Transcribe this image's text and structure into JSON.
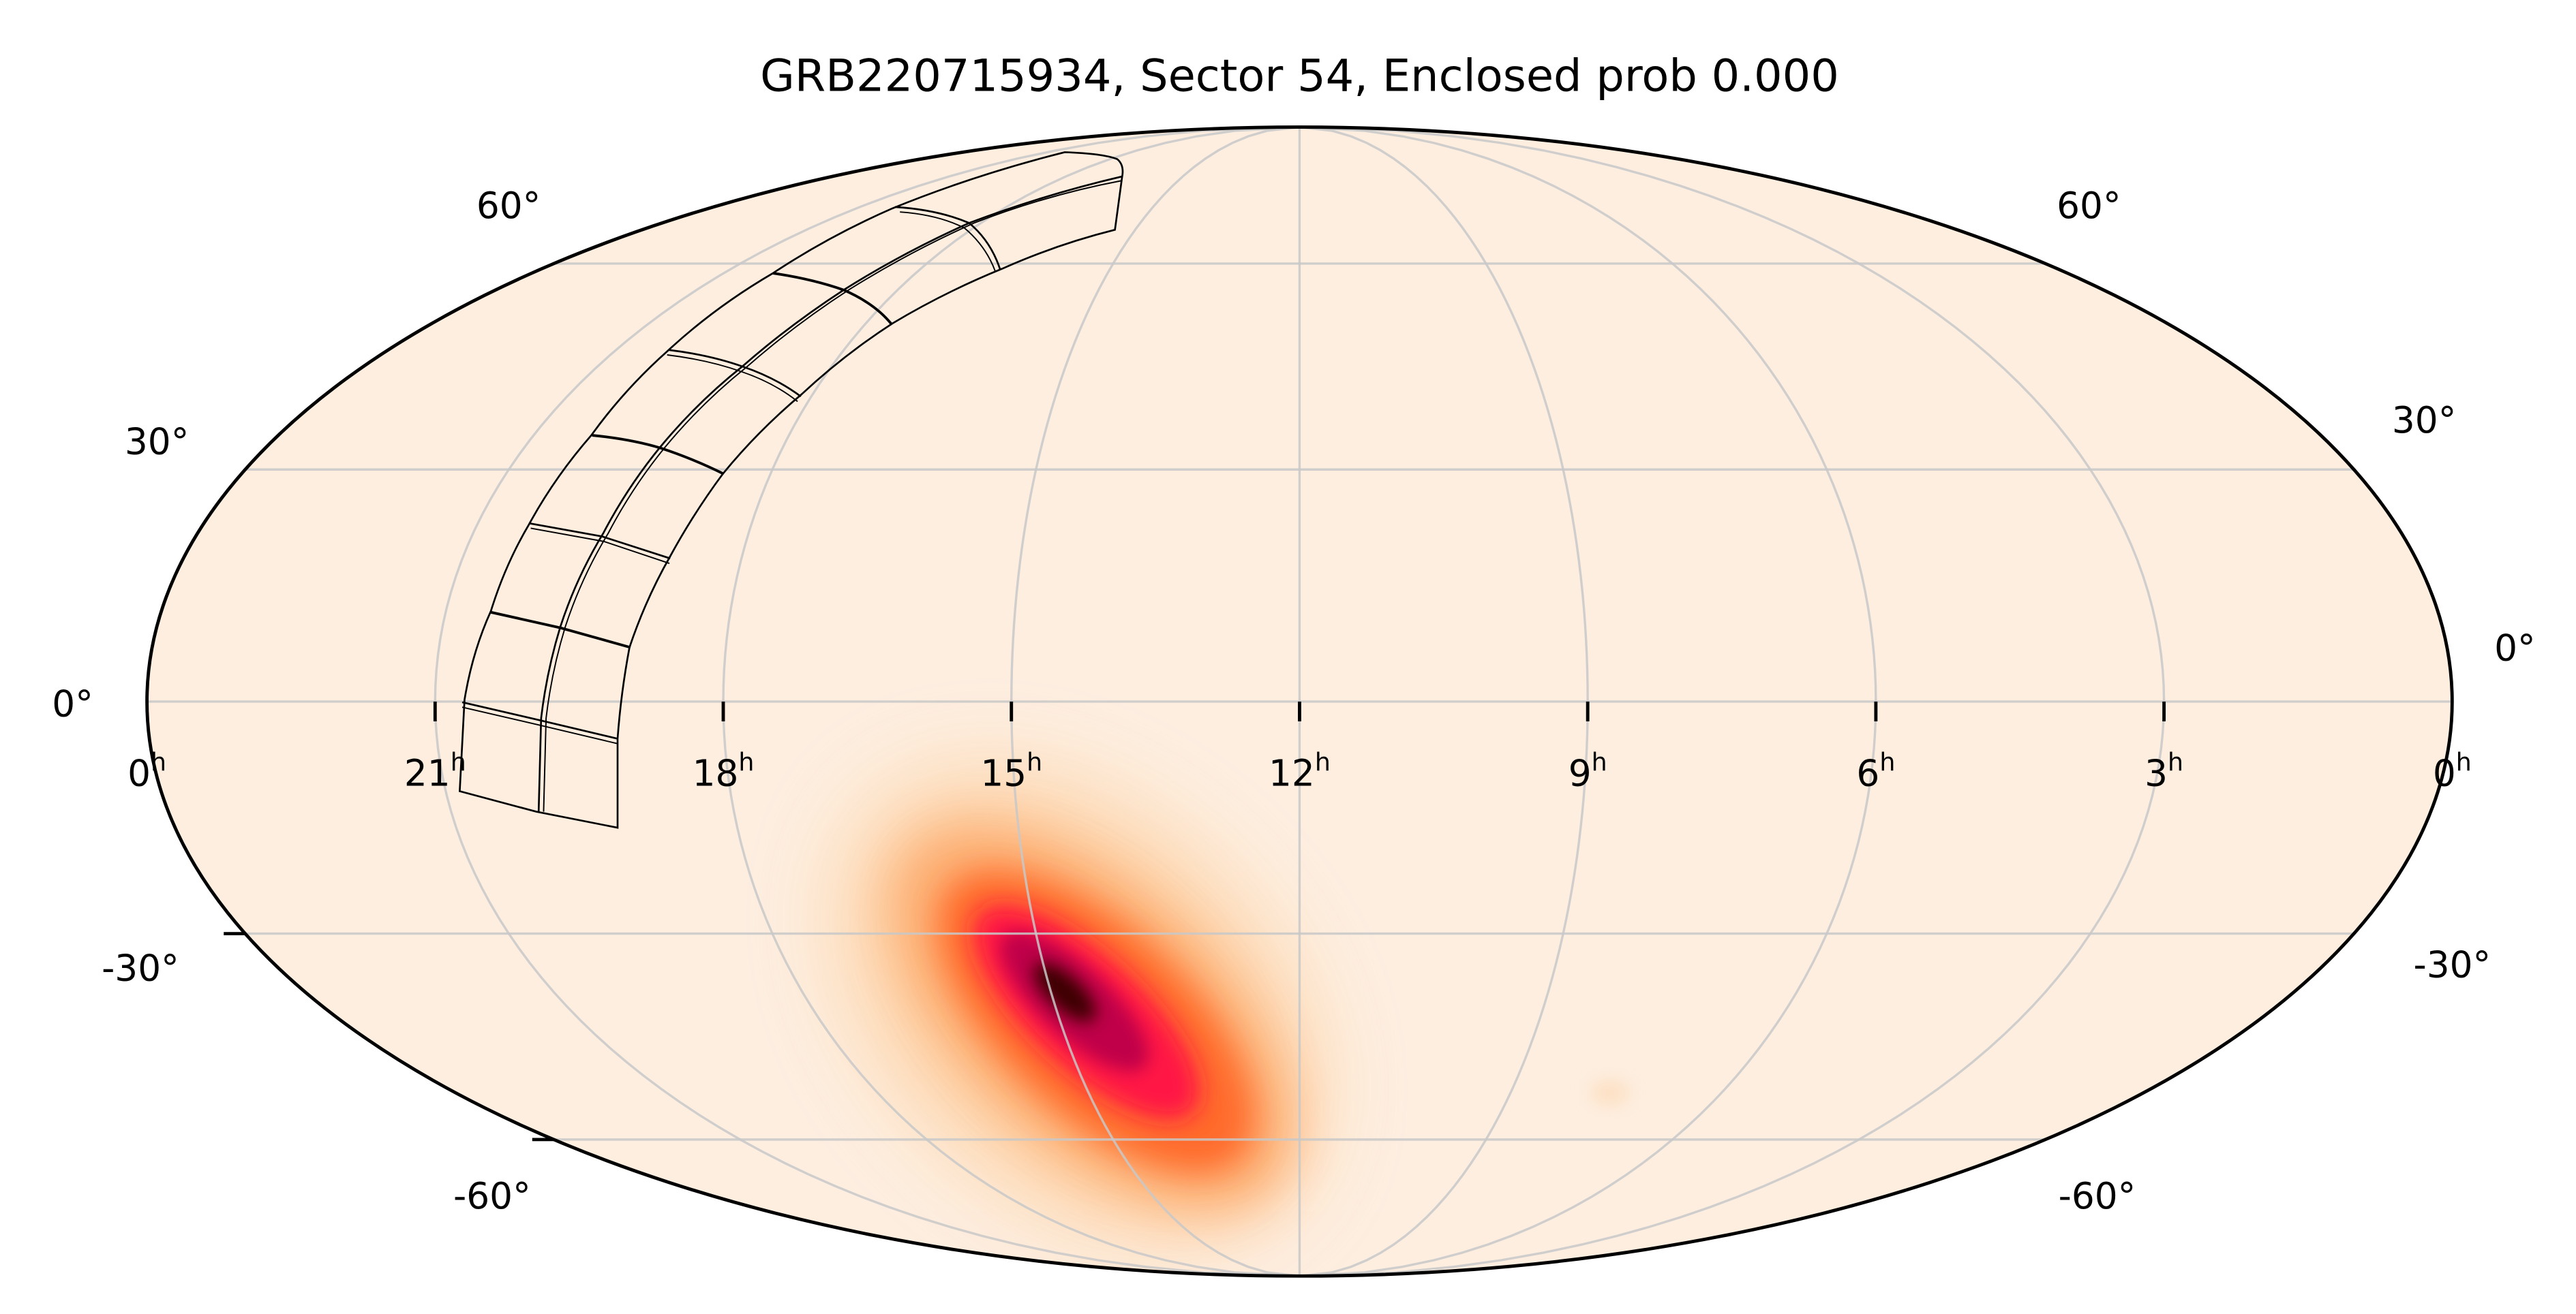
{
  "chart_data": {
    "type": "heatmap",
    "projection": "mollweide",
    "title": "GRB220715934, Sector 54, Enclosed prob 0.000",
    "background_color": "#fdeee0",
    "grid": true,
    "grid_color": "#c8c8c8",
    "colormap": [
      "#fdeee0",
      "#fdd3a8",
      "#fdac6e",
      "#ff6a2a",
      "#ff1444",
      "#c0004a",
      "#3a0000"
    ],
    "ra_ticks": [
      {
        "ra_hours": 24,
        "value": "0",
        "unit": "h"
      },
      {
        "ra_hours": 21,
        "value": "21",
        "unit": "h"
      },
      {
        "ra_hours": 18,
        "value": "18",
        "unit": "h"
      },
      {
        "ra_hours": 15,
        "value": "15",
        "unit": "h"
      },
      {
        "ra_hours": 12,
        "value": "12",
        "unit": "h"
      },
      {
        "ra_hours": 9,
        "value": "9",
        "unit": "h"
      },
      {
        "ra_hours": 6,
        "value": "6",
        "unit": "h"
      },
      {
        "ra_hours": 3,
        "value": "3",
        "unit": "h"
      },
      {
        "ra_hours": 0,
        "value": "0",
        "unit": "h"
      }
    ],
    "dec_ticks": [
      {
        "dec": 60,
        "label": "60°"
      },
      {
        "dec": 30,
        "label": "30°"
      },
      {
        "dec": 0,
        "label": "0°"
      },
      {
        "dec": -30,
        "label": "-30°"
      },
      {
        "dec": -60,
        "label": "-60°"
      }
    ],
    "probability_peak": {
      "ra_deg": 222.5,
      "dec_deg": -38.0
    },
    "probability_tail": {
      "ra_deg": 196,
      "dec_deg": -62
    },
    "footprint": {
      "sector": 54,
      "cameras": 4,
      "ccds_per_camera": 4
    },
    "enclosed_prob": 0.0
  }
}
